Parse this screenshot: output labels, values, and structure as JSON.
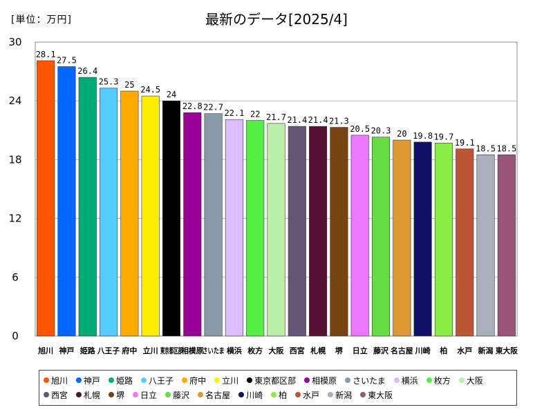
{
  "unit_label": "[単位：万円]",
  "chart_data": {
    "type": "bar",
    "title": "最新のデータ[2025/4]",
    "xlabel": "",
    "ylabel": "",
    "ylim": [
      0,
      30
    ],
    "yticks": [
      0,
      6,
      12,
      18,
      24,
      30
    ],
    "grid": true,
    "legend_position": "bottom",
    "categories": [
      "旭川",
      "神戸",
      "姫路",
      "八王子",
      "府中",
      "立川",
      "東京都区部",
      "相模原",
      "さいたま",
      "横浜",
      "枚方",
      "大阪",
      "西宮",
      "札幌",
      "堺",
      "日立",
      "藤沢",
      "名古屋",
      "川崎",
      "柏",
      "水戸",
      "新潟",
      "東大阪"
    ],
    "values": [
      28.1,
      27.5,
      26.4,
      25.3,
      25,
      24.5,
      24,
      22.8,
      22.7,
      22.1,
      22,
      21.7,
      21.4,
      21.4,
      21.3,
      20.5,
      20.3,
      20,
      19.8,
      19.7,
      19.1,
      18.5,
      18.5
    ],
    "value_labels": [
      "28.1",
      "27.5",
      "26.4",
      "25.3",
      "25",
      "24.5",
      "24",
      "22.8",
      "22.7",
      "22.1",
      "22",
      "21.7",
      "21.4",
      "21.4",
      "21.3",
      "20.5",
      "20.3",
      "20",
      "19.8",
      "19.7",
      "19.1",
      "18.5",
      "18.5"
    ],
    "axis_labels": [
      "旭川",
      "神戸",
      "姫路",
      "八王子",
      "府中",
      "立川",
      "東京都区部",
      "相模原",
      "さいたま",
      "横浜",
      "枚方",
      "大阪",
      "西宮",
      "札幌",
      "堺",
      "日立",
      "藤沢",
      "名古屋",
      "川崎",
      "柏",
      "水戸",
      "新潟",
      "東大阪"
    ],
    "colors": [
      "#ff5500",
      "#0066ff",
      "#00aa77",
      "#55ccff",
      "#ffaa00",
      "#ffee00",
      "#000000",
      "#990099",
      "#8899aa",
      "#ddbbff",
      "#55ee44",
      "#bbeeaa",
      "#665577",
      "#551133",
      "#774411",
      "#ee77ff",
      "#66dd44",
      "#dd9933",
      "#111166",
      "#88ee44",
      "#bb5533",
      "#aab0bb",
      "#995577"
    ]
  }
}
